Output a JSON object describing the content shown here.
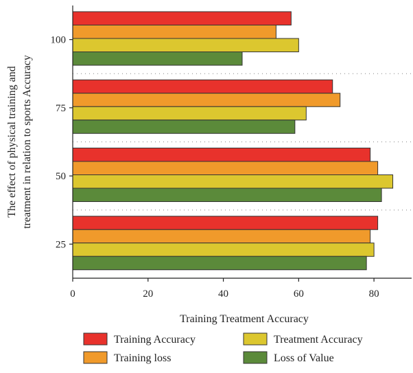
{
  "chart_data": {
    "type": "bar",
    "orientation": "horizontal",
    "title": "",
    "xlabel": "Training Treatment Accuracy",
    "ylabel_lines": [
      "The effect of physical training and",
      "treatment in relation to sports Accuracy"
    ],
    "categories": [
      "100",
      "75",
      "50",
      "25"
    ],
    "xlim": [
      0,
      90
    ],
    "xticks": [
      "0",
      "20",
      "40",
      "60",
      "80"
    ],
    "grid": "dotted separators between groups",
    "legend_position": "bottom",
    "series": [
      {
        "name": "Training Accuracy",
        "color": "#e8322c",
        "values": [
          58,
          69,
          79,
          81
        ]
      },
      {
        "name": "Training loss",
        "color": "#f09a2b",
        "values": [
          54,
          71,
          81,
          79
        ]
      },
      {
        "name": "Treatment Accuracy",
        "color": "#dcc72f",
        "values": [
          60,
          62,
          85,
          80
        ]
      },
      {
        "name": "Loss of Value",
        "color": "#5b8a3a",
        "values": [
          45,
          59,
          82,
          78
        ]
      }
    ]
  }
}
